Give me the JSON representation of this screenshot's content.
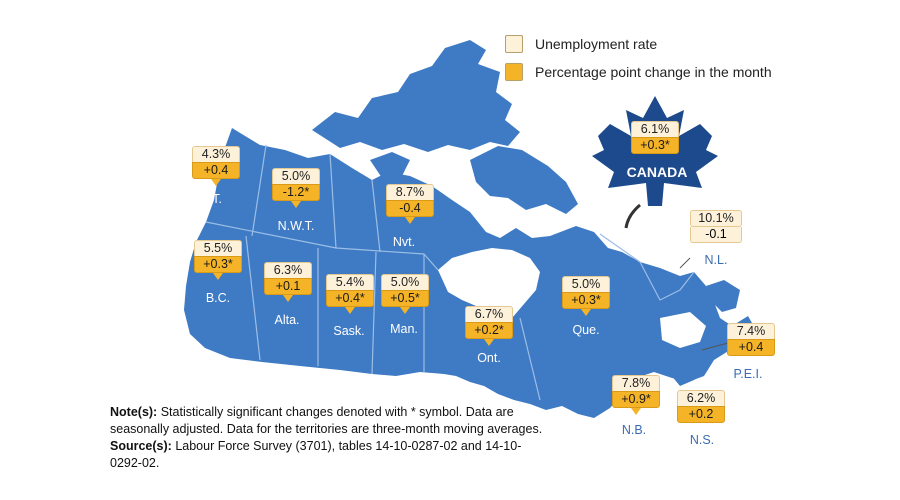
{
  "legend": {
    "rate_label": "Unemployment rate",
    "change_label": "Percentage point change in the month",
    "rate_color": "#fdf1da",
    "change_color": "#f5b328"
  },
  "colors": {
    "land": "#3e7bc4",
    "water": "#ffffff",
    "border": "#9cbde6",
    "dark_leaf": "#1d4a8c"
  },
  "canada": {
    "name": "CANADA",
    "rate": "6.1%",
    "change": "+0.3*"
  },
  "regions": [
    {
      "id": "yt",
      "name": "Y.T.",
      "rate": "4.3%",
      "change": "+0.4"
    },
    {
      "id": "nwt",
      "name": "N.W.T.",
      "rate": "5.0%",
      "change": "-1.2*"
    },
    {
      "id": "nvt",
      "name": "Nvt.",
      "rate": "8.7%",
      "change": "-0.4"
    },
    {
      "id": "bc",
      "name": "B.C.",
      "rate": "5.5%",
      "change": "+0.3*"
    },
    {
      "id": "alta",
      "name": "Alta.",
      "rate": "6.3%",
      "change": "+0.1"
    },
    {
      "id": "sask",
      "name": "Sask.",
      "rate": "5.4%",
      "change": "+0.4*"
    },
    {
      "id": "man",
      "name": "Man.",
      "rate": "5.0%",
      "change": "+0.5*"
    },
    {
      "id": "ont",
      "name": "Ont.",
      "rate": "6.7%",
      "change": "+0.2*"
    },
    {
      "id": "que",
      "name": "Que.",
      "rate": "5.0%",
      "change": "+0.3*"
    },
    {
      "id": "nl",
      "name": "N.L.",
      "rate": "10.1%",
      "change": "-0.1"
    },
    {
      "id": "pei",
      "name": "P.E.I.",
      "rate": "7.4%",
      "change": "+0.4"
    },
    {
      "id": "nb",
      "name": "N.B.",
      "rate": "7.8%",
      "change": "+0.9*"
    },
    {
      "id": "ns",
      "name": "N.S.",
      "rate": "6.2%",
      "change": "+0.2"
    }
  ],
  "note": {
    "note_heading": "Note(s):",
    "note_text": "Statistically significant changes denoted with * symbol. Data are seasonally adjusted. Data for the territories are three-month moving averages.",
    "source_heading": "Source(s):",
    "source_text": "Labour Force Survey (3701), tables 14-10-0287-02 and 14-10-0292-02."
  }
}
